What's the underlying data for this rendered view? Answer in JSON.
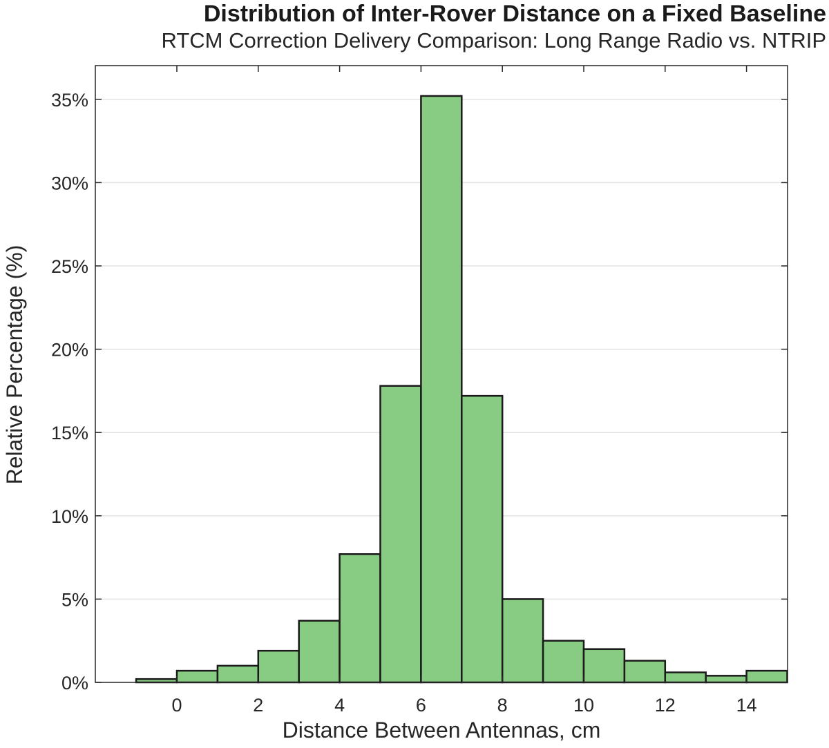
{
  "chart_data": {
    "type": "bar",
    "title": "Distribution of Inter-Rover Distance on a Fixed Baseline",
    "subtitle": "RTCM Correction Delivery Comparison: Long Range Radio vs. NTRIP",
    "xlabel": "Distance Between Antennas, cm",
    "ylabel": "Relative Percentage (%)",
    "xlim": [
      -2,
      15
    ],
    "ylim": [
      0,
      37
    ],
    "x_ticks": [
      0,
      2,
      4,
      6,
      8,
      10,
      12,
      14
    ],
    "y_ticks": [
      0,
      5,
      10,
      15,
      20,
      25,
      30,
      35
    ],
    "y_tick_labels": [
      "0%",
      "5%",
      "10%",
      "15%",
      "20%",
      "25%",
      "30%",
      "35%"
    ],
    "bin_edges": [
      -1,
      0,
      1,
      2,
      3,
      4,
      5,
      6,
      7,
      8,
      9,
      10,
      11,
      12,
      13,
      14,
      15
    ],
    "values": [
      0.2,
      0.7,
      1.0,
      1.9,
      3.7,
      7.7,
      17.8,
      35.2,
      17.2,
      5.0,
      2.5,
      2.0,
      1.3,
      0.6,
      0.4,
      0.7
    ],
    "grid": true,
    "bar_color": "#87cc82",
    "edge_color": "#1a1a1a"
  }
}
